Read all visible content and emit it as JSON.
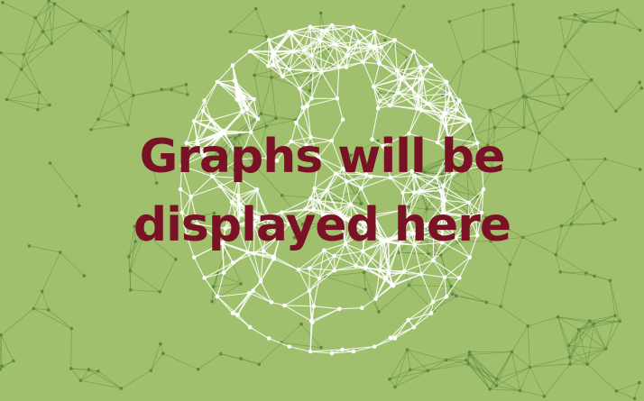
{
  "placeholder": {
    "line1": "Graphs will be",
    "line2": "displayed here"
  },
  "colors": {
    "background": "#a0c06e",
    "network_dark": "#5e8a3f",
    "globe_white": "#ffffff",
    "text": "#7a1226"
  },
  "graphic": {
    "background_icon": "network-mesh",
    "center_icon": "wireframe-globe-icon"
  }
}
